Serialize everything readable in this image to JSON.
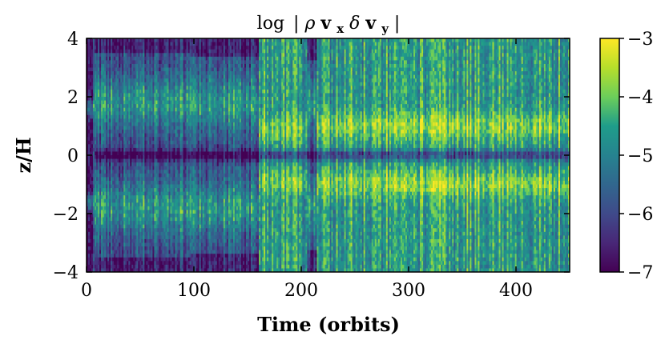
{
  "chart_data": {
    "type": "heatmap",
    "title": "log |ρvₓδvᵧ|",
    "title_parts": {
      "prefix": "log",
      "open": "|",
      "rho": "ρ",
      "v": "v",
      "x": "x",
      "delta": "δ",
      "y": "y",
      "close": "|"
    },
    "xlabel": "Time (orbits)",
    "ylabel": "z/H",
    "xlim": [
      0,
      450
    ],
    "ylim": [
      -4,
      4
    ],
    "xticks": [
      0,
      100,
      200,
      300,
      400
    ],
    "xtick_labels": [
      "0",
      "100",
      "200",
      "300",
      "400"
    ],
    "yticks": [
      -4,
      -2,
      0,
      2,
      4
    ],
    "ytick_labels": [
      "−4",
      "−2",
      "0",
      "2",
      "4"
    ],
    "colorbar": {
      "colormap": "viridis",
      "range": [
        -7,
        -3
      ],
      "ticks": [
        -3,
        -4,
        -5,
        -6,
        -7
      ],
      "tick_labels": [
        "−3",
        "−4",
        "−5",
        "−6",
        "−7"
      ],
      "colors": [
        "#440154",
        "#482777",
        "#3f4a8a",
        "#31678e",
        "#26838f",
        "#1f9d8a",
        "#6cce5a",
        "#b6de2b",
        "#fee825"
      ]
    },
    "features": [
      {
        "z_center": 1.8,
        "t_range": [
          0,
          450
        ],
        "level_max": -4.0
      },
      {
        "z_center": -1.8,
        "t_range": [
          0,
          450
        ],
        "level_max": -4.0
      },
      {
        "z_center": 1.0,
        "t_range": [
          220,
          450
        ],
        "level_max": -3.7
      },
      {
        "z_center": -1.0,
        "t_range": [
          220,
          450
        ],
        "level_max": -3.7
      },
      {
        "z_center": 0.0,
        "t_range": [
          0,
          450
        ],
        "level_max": -5.5
      }
    ]
  }
}
